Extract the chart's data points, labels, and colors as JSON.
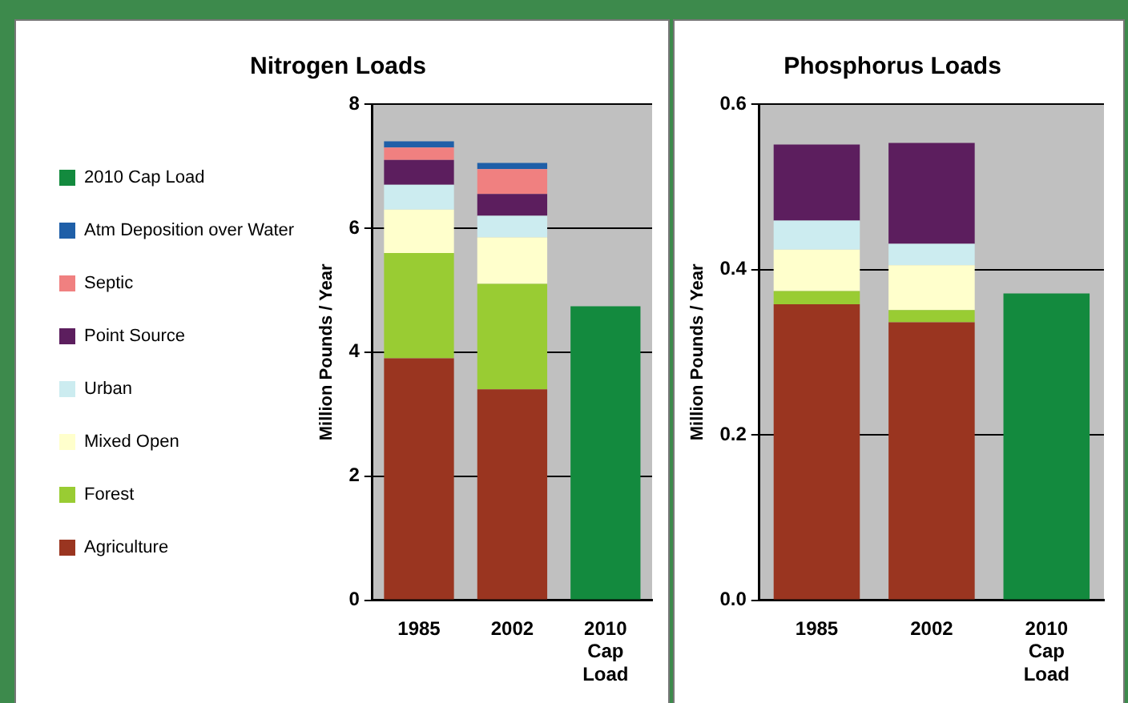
{
  "chart_data": [
    {
      "type": "bar",
      "title": "Nitrogen Loads",
      "ylabel": "Million Pounds / Year",
      "categories": [
        "1985",
        "2002",
        "2010 Cap Load"
      ],
      "stacked": true,
      "ylim": [
        0,
        8
      ],
      "yticks": [
        0,
        2,
        4,
        6,
        8
      ],
      "grid": "y",
      "legend": "left",
      "series": [
        {
          "name": "Agriculture",
          "color": "#9a3520",
          "values": [
            3.9,
            3.4,
            null
          ]
        },
        {
          "name": "Forest",
          "color": "#99cc33",
          "values": [
            1.7,
            1.7,
            null
          ]
        },
        {
          "name": "Mixed Open",
          "color": "#ffffcc",
          "values": [
            0.7,
            0.75,
            null
          ]
        },
        {
          "name": "Urban",
          "color": "#ccecf0",
          "values": [
            0.4,
            0.35,
            null
          ]
        },
        {
          "name": "Point Source",
          "color": "#5c1e5e",
          "values": [
            0.4,
            0.35,
            null
          ]
        },
        {
          "name": "Septic",
          "color": "#f08080",
          "values": [
            0.2,
            0.4,
            null
          ]
        },
        {
          "name": "Atm Deposition over Water",
          "color": "#1f5fa8",
          "values": [
            0.1,
            0.1,
            null
          ]
        },
        {
          "name": "2010 Cap Load",
          "color": "#138a3e",
          "values": [
            null,
            null,
            4.74
          ]
        }
      ]
    },
    {
      "type": "bar",
      "title": "Phosphorus Loads",
      "ylabel": "Million Pounds / Year",
      "categories": [
        "1985",
        "2002",
        "2010 Cap Load"
      ],
      "stacked": true,
      "ylim": [
        0,
        0.6
      ],
      "yticks": [
        {
          "value": 0,
          "label": "0.0"
        },
        0.2,
        0.4,
        0.6
      ],
      "grid": "y",
      "series": [
        {
          "color": "#9a3520",
          "values": [
            0.358,
            0.336,
            null
          ]
        },
        {
          "color": "#99cc33",
          "values": [
            0.016,
            0.015,
            null
          ]
        },
        {
          "color": "#ffffcc",
          "values": [
            0.05,
            0.054,
            null
          ]
        },
        {
          "color": "#ccecf0",
          "values": [
            0.035,
            0.026,
            null
          ]
        },
        {
          "color": "#5c1e5e",
          "values": [
            0.092,
            0.122,
            null
          ]
        },
        {
          "color": "#138a3e",
          "values": [
            null,
            null,
            0.371
          ]
        }
      ]
    }
  ]
}
